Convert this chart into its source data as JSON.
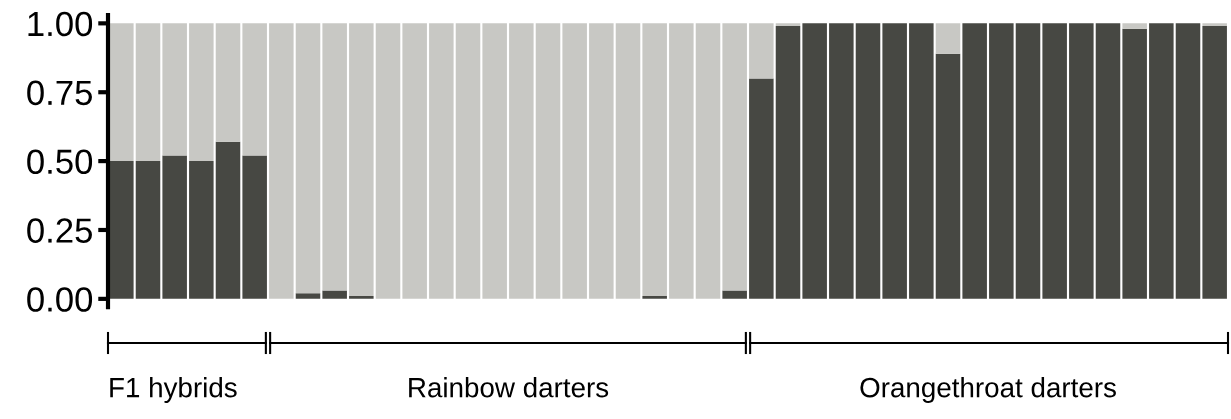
{
  "chart_data": {
    "type": "bar",
    "stacked": true,
    "categories": [
      null,
      null,
      null,
      null,
      null,
      null,
      null,
      null,
      null,
      null,
      null,
      null,
      null,
      null,
      null,
      null,
      null,
      null,
      null,
      null,
      null,
      null,
      null,
      null,
      null,
      null,
      null,
      null,
      null,
      null,
      null,
      null,
      null,
      null,
      null,
      null,
      null,
      null,
      null,
      null,
      null,
      null
    ],
    "series": [
      {
        "color": "#474843",
        "values": [
          0.5,
          0.5,
          0.52,
          0.5,
          0.57,
          0.52,
          0,
          0.02,
          0.03,
          0.01,
          0,
          0,
          0,
          0,
          0,
          0,
          0,
          0,
          0,
          0,
          0.01,
          0,
          0,
          0.03,
          0.8,
          0.99,
          1,
          1,
          1,
          1,
          1,
          0.89,
          1,
          1,
          1,
          1,
          1,
          1,
          0.98,
          1,
          1,
          0.99
        ]
      },
      {
        "color": "#c8c8c4",
        "values": [
          0.5,
          0.5,
          0.48,
          0.5,
          0.43,
          0.48,
          1,
          0.98,
          0.97,
          0.99,
          1,
          1,
          1,
          1,
          1,
          1,
          1,
          1,
          1,
          1,
          0.99,
          1,
          1,
          0.97,
          0.2,
          0.01,
          0,
          0,
          0,
          0,
          0,
          0.11,
          0,
          0,
          0,
          0,
          0,
          0,
          0.02,
          0,
          0,
          0.01
        ]
      }
    ],
    "ylim": [
      -0.03,
      1.03
    ],
    "yticks": [
      {
        "value": 0,
        "label": "0.00"
      },
      {
        "value": 0.25,
        "label": "0.25"
      },
      {
        "value": 0.5,
        "label": "0.50"
      },
      {
        "value": 0.75,
        "label": "0.75"
      },
      {
        "value": 1,
        "label": "1.00"
      }
    ],
    "tick_labels": "y",
    "annotations": [
      "F1 hybrids",
      "Rainbow darters",
      "Orangethroat darters"
    ]
  }
}
